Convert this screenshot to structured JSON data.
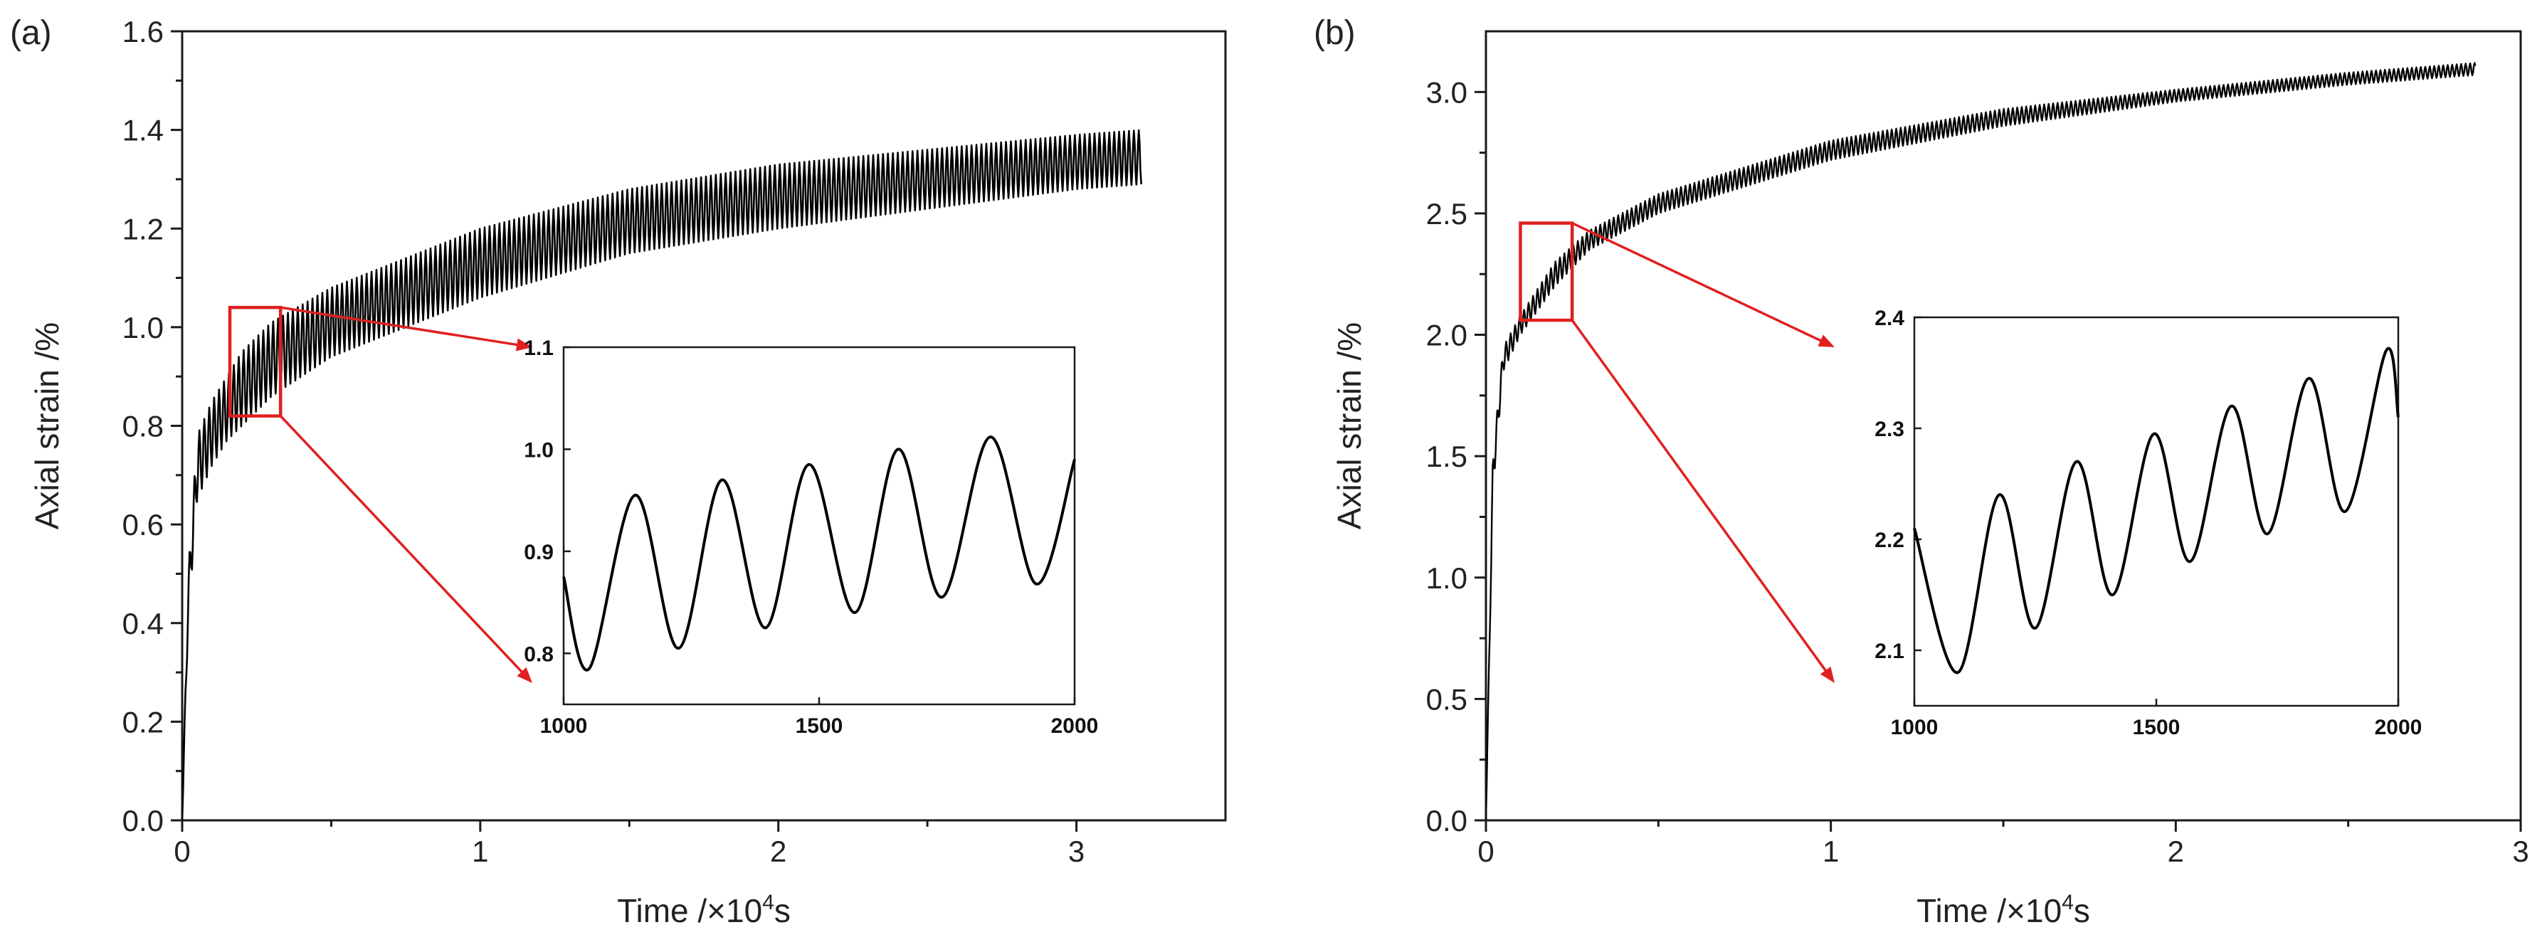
{
  "chart_data": [
    {
      "panel": "(a)",
      "type": "line",
      "xlabel": "Time /×10",
      "xlabel_sup": "4",
      "xlabel_suffix": "s",
      "ylabel": "Axial strain /%",
      "xlim": [
        0,
        3.5
      ],
      "ylim": [
        0,
        1.6
      ],
      "xticks": [
        0,
        1,
        2,
        3
      ],
      "xtick_labels": [
        "0",
        "1",
        "2",
        "3"
      ],
      "yticks": [
        0.0,
        0.2,
        0.4,
        0.6,
        0.8,
        1.0,
        1.2,
        1.4,
        1.6
      ],
      "ytick_labels": [
        "0.0",
        "0.2",
        "0.4",
        "0.6",
        "0.8",
        "1.0",
        "1.2",
        "1.4",
        "1.6"
      ],
      "series": [
        {
          "name": "upper envelope",
          "x": [
            0,
            0.02,
            0.05,
            0.1,
            0.15,
            0.2,
            0.3,
            0.5,
            0.75,
            1.0,
            1.5,
            2.0,
            2.5,
            3.0,
            3.22
          ],
          "y": [
            0.0,
            0.5,
            0.78,
            0.85,
            0.9,
            0.95,
            1.01,
            1.08,
            1.14,
            1.2,
            1.28,
            1.33,
            1.36,
            1.39,
            1.4
          ]
        },
        {
          "name": "lower envelope",
          "x": [
            0,
            0.02,
            0.05,
            0.1,
            0.15,
            0.2,
            0.3,
            0.5,
            0.75,
            1.0,
            1.5,
            2.0,
            2.5,
            3.0,
            3.22
          ],
          "y": [
            0.0,
            0.4,
            0.65,
            0.72,
            0.77,
            0.8,
            0.86,
            0.94,
            1.0,
            1.06,
            1.15,
            1.2,
            1.24,
            1.28,
            1.29
          ]
        }
      ],
      "zoom_box": {
        "x": [
          0.16,
          0.33
        ],
        "y": [
          0.82,
          1.04
        ]
      },
      "inset": {
        "xlim": [
          1000,
          2000
        ],
        "ylim": [
          0.75,
          1.1
        ],
        "xticks": [
          1000,
          1500,
          2000
        ],
        "xtick_labels": [
          "1000",
          "1500",
          "2000"
        ],
        "yticks": [
          0.8,
          0.9,
          1.0,
          1.1
        ],
        "ytick_labels": [
          "0.8",
          "0.9",
          "1.0",
          "1.1"
        ],
        "x": [
          1000,
          1050,
          1140,
          1225,
          1310,
          1395,
          1480,
          1570,
          1655,
          1740,
          1835,
          1925,
          2000
        ],
        "y": [
          0.875,
          0.785,
          0.955,
          0.805,
          0.97,
          0.825,
          0.985,
          0.84,
          1.0,
          0.855,
          1.012,
          0.868,
          0.99
        ]
      }
    },
    {
      "panel": "(b)",
      "type": "line",
      "xlabel": "Time /×10",
      "xlabel_sup": "4",
      "xlabel_suffix": "s",
      "ylabel": "Axial strain /%",
      "xlim": [
        0,
        3
      ],
      "ylim": [
        0,
        3.25
      ],
      "xticks": [
        0,
        1,
        2,
        3
      ],
      "xtick_labels": [
        "0",
        "1",
        "2",
        "3"
      ],
      "yticks": [
        0.0,
        0.5,
        1.0,
        1.5,
        2.0,
        2.5,
        3.0
      ],
      "ytick_labels": [
        "0.0",
        "0.5",
        "1.0",
        "1.5",
        "2.0",
        "2.5",
        "3.0"
      ],
      "series": [
        {
          "name": "upper envelope",
          "x": [
            0,
            0.02,
            0.05,
            0.1,
            0.2,
            0.3,
            0.5,
            1.0,
            1.5,
            2.0,
            2.5,
            2.87
          ],
          "y": [
            0.0,
            1.5,
            1.95,
            2.08,
            2.3,
            2.43,
            2.58,
            2.8,
            2.93,
            3.01,
            3.08,
            3.12
          ]
        },
        {
          "name": "lower envelope",
          "x": [
            0,
            0.02,
            0.05,
            0.1,
            0.2,
            0.3,
            0.5,
            1.0,
            1.5,
            2.0,
            2.5,
            2.87
          ],
          "y": [
            0.0,
            1.35,
            1.85,
            2.0,
            2.2,
            2.35,
            2.5,
            2.72,
            2.86,
            2.96,
            3.03,
            3.07
          ]
        }
      ],
      "zoom_box": {
        "x": [
          0.1,
          0.25
        ],
        "y": [
          2.06,
          2.46
        ]
      },
      "inset": {
        "xlim": [
          1000,
          2000
        ],
        "ylim": [
          2.05,
          2.4
        ],
        "xticks": [
          1000,
          1500,
          2000
        ],
        "xtick_labels": [
          "1000",
          "1500",
          "2000"
        ],
        "yticks": [
          2.1,
          2.2,
          2.3,
          2.4
        ],
        "ytick_labels": [
          "2.1",
          "2.2",
          "2.3",
          "2.4"
        ],
        "x": [
          1000,
          1090,
          1175,
          1250,
          1335,
          1410,
          1495,
          1570,
          1655,
          1730,
          1815,
          1890,
          1975,
          2000
        ],
        "y": [
          2.21,
          2.08,
          2.24,
          2.12,
          2.27,
          2.15,
          2.295,
          2.18,
          2.32,
          2.205,
          2.345,
          2.225,
          2.37,
          2.31
        ]
      }
    }
  ]
}
